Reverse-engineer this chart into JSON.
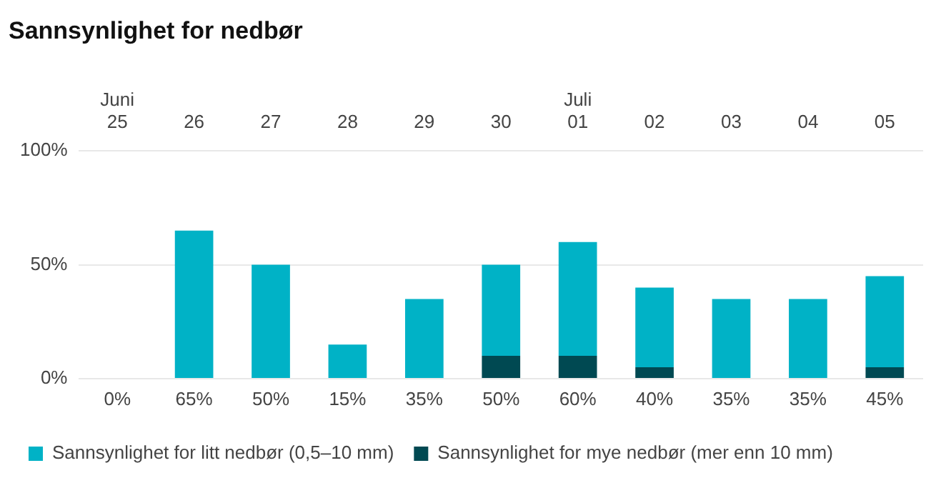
{
  "chart_data": {
    "type": "bar",
    "title": "Sannsynlighet for nedbør",
    "categories": [
      "Juni 25",
      "26",
      "27",
      "28",
      "29",
      "30",
      "Juli 01",
      "02",
      "03",
      "04",
      "05"
    ],
    "stacked": true,
    "series": [
      {
        "name": "Sannsynlighet for mye nedbør (mer enn 10 mm)",
        "color": "#004952",
        "values": [
          0,
          0,
          0,
          0,
          0,
          10,
          10,
          5,
          0,
          0,
          5
        ]
      },
      {
        "name": "Sannsynlighet for litt nedbør (0,5–10 mm)",
        "color": "#00b2c6",
        "values": [
          0,
          65,
          50,
          15,
          35,
          40,
          50,
          35,
          35,
          35,
          40
        ]
      }
    ],
    "totals": [
      "0%",
      "65%",
      "50%",
      "15%",
      "35%",
      "50%",
      "60%",
      "40%",
      "35%",
      "35%",
      "45%"
    ],
    "ylim": [
      0,
      100
    ],
    "yticks": [
      {
        "value": 0,
        "label": "0%"
      },
      {
        "value": 50,
        "label": "50%"
      },
      {
        "value": 100,
        "label": "100%"
      }
    ],
    "grid": "y",
    "legend": "bottom left"
  }
}
